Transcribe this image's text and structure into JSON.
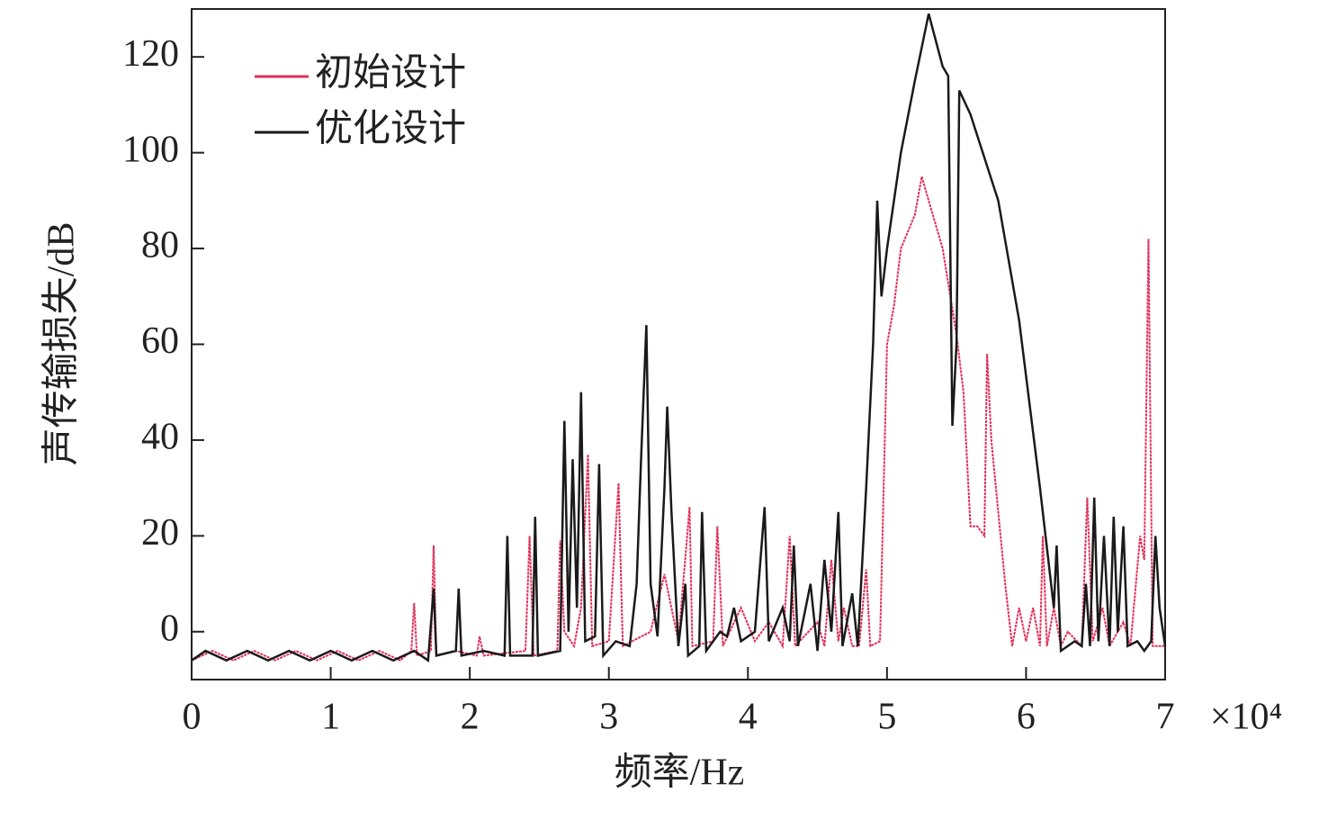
{
  "chart_data": {
    "type": "line",
    "xlabel": "频率/Hz",
    "ylabel": "声传输损失/dB",
    "x_multiplier": "×10⁴",
    "xlim": [
      0,
      70000
    ],
    "ylim": [
      -10,
      130
    ],
    "xticks": [
      0,
      {
        "value": 10000,
        "label": "1"
      },
      {
        "value": 20000,
        "label": "2"
      },
      {
        "value": 30000,
        "label": "3"
      },
      {
        "value": 40000,
        "label": "4"
      },
      {
        "value": 50000,
        "label": "5"
      },
      {
        "value": 60000,
        "label": "6"
      },
      {
        "value": 70000,
        "label": "7"
      }
    ],
    "yticks": [
      0,
      20,
      40,
      60,
      80,
      100,
      120
    ],
    "legend": "upper left",
    "series": [
      {
        "name": "初始设计",
        "color": "#e0305a",
        "x": [
          0,
          1500,
          3000,
          4500,
          6000,
          7500,
          9000,
          10500,
          12000,
          13500,
          15000,
          15800,
          16000,
          16200,
          17200,
          17400,
          17600,
          19000,
          20500,
          20700,
          21000,
          24000,
          24300,
          24600,
          26300,
          26500,
          26800,
          27500,
          28000,
          28500,
          28800,
          30000,
          30700,
          31000,
          33000,
          34000,
          35000,
          35800,
          36000,
          37500,
          37800,
          38200,
          39500,
          40500,
          41500,
          42500,
          43000,
          43400,
          45000,
          45500,
          46000,
          46500,
          46900,
          47500,
          48000,
          48500,
          48800,
          49500,
          50000,
          50500,
          51000,
          52000,
          52500,
          53000,
          54000,
          55000,
          55500,
          56000,
          56500,
          57000,
          57200,
          57500,
          58000,
          58500,
          59000,
          59500,
          60000,
          60500,
          61000,
          61200,
          61500,
          62000,
          62500,
          63000,
          64000,
          64400,
          64800,
          65500,
          66000,
          67000,
          67500,
          68200,
          68500,
          68800,
          69100,
          70000
        ],
        "values": [
          -6,
          -4,
          -6,
          -4,
          -6,
          -4,
          -6,
          -4,
          -6,
          -4,
          -6,
          -4,
          6,
          -5,
          -4,
          18,
          -5,
          -4,
          -5,
          -1,
          -5,
          -4,
          20,
          -5,
          -4,
          19,
          0,
          -3,
          5,
          37,
          -3,
          -2,
          31,
          -3,
          0,
          12,
          -2,
          26,
          -3,
          -2,
          22,
          -3,
          5,
          -2,
          2,
          -3,
          20,
          -3,
          2,
          -3,
          15,
          -2,
          5,
          -3,
          -3,
          13,
          -3,
          -2,
          60,
          68,
          80,
          87,
          95,
          90,
          80,
          62,
          50,
          22,
          22,
          20,
          58,
          40,
          25,
          10,
          -3,
          5,
          -2,
          5,
          -3,
          20,
          -3,
          5,
          -3,
          0,
          -3,
          28,
          -2,
          5,
          -3,
          2,
          -3,
          20,
          15,
          82,
          -3,
          -3
        ]
      },
      {
        "name": "优化设计",
        "color": "#1a1a1a",
        "x": [
          0,
          1000,
          2500,
          4000,
          5500,
          7000,
          8500,
          10000,
          11500,
          13000,
          14500,
          16000,
          17000,
          17400,
          17600,
          19000,
          19200,
          19400,
          21000,
          22500,
          22700,
          22900,
          24500,
          24700,
          24900,
          26500,
          26800,
          27100,
          27400,
          27700,
          28000,
          28300,
          29000,
          29300,
          29600,
          30500,
          31500,
          32000,
          32300,
          32700,
          33000,
          33500,
          34000,
          34200,
          34500,
          35000,
          35500,
          35700,
          36500,
          36700,
          37000,
          38000,
          38500,
          39000,
          39500,
          40500,
          41200,
          41500,
          42500,
          43000,
          43300,
          43600,
          44500,
          45000,
          45500,
          46000,
          46500,
          46800,
          47500,
          47900,
          48500,
          49000,
          49300,
          49600,
          50000,
          51000,
          52000,
          53000,
          54000,
          54400,
          54700,
          55000,
          55200,
          56000,
          58000,
          59500,
          61000,
          62000,
          62200,
          62500,
          63500,
          64000,
          64300,
          64600,
          64900,
          65200,
          65600,
          66000,
          66300,
          66600,
          67000,
          67300,
          68000,
          68500,
          69000,
          69300,
          69600,
          70000
        ],
        "values": [
          -6,
          -4,
          -6,
          -4,
          -6,
          -4,
          -6,
          -4,
          -6,
          -4,
          -6,
          -4,
          -6,
          9,
          -5,
          -4,
          9,
          -5,
          -4,
          -5,
          20,
          -5,
          -5,
          24,
          -5,
          -4,
          44,
          0,
          36,
          5,
          50,
          -2,
          -1,
          35,
          -5,
          -2,
          -3,
          10,
          35,
          64,
          10,
          -1,
          30,
          47,
          25,
          -3,
          10,
          -5,
          -3,
          25,
          -4,
          0,
          -1,
          5,
          -2,
          0,
          26,
          -2,
          5,
          -2,
          18,
          -3,
          10,
          -4,
          15,
          0,
          25,
          -3,
          8,
          -3,
          30,
          60,
          90,
          70,
          80,
          100,
          115,
          129,
          118,
          116,
          43,
          60,
          113,
          108,
          90,
          65,
          30,
          5,
          18,
          -4,
          -2,
          -3,
          10,
          -3,
          28,
          -2,
          20,
          -3,
          24,
          0,
          22,
          -3,
          -2,
          -4,
          -2,
          20,
          5,
          -3
        ]
      }
    ]
  }
}
